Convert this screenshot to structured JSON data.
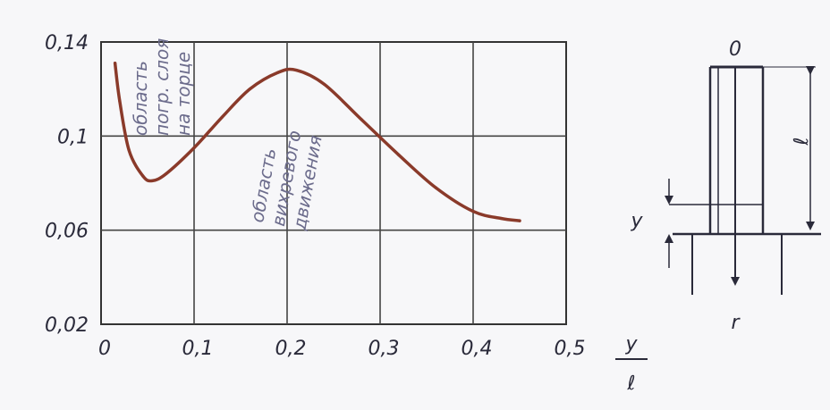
{
  "chart_data": {
    "type": "line",
    "title": "",
    "xlabel": {
      "numerator": "y",
      "denominator": "ℓ"
    },
    "ylabel": "",
    "x_ticks": [
      "0",
      "0,1",
      "0,2",
      "0,3",
      "0,4",
      "0,5"
    ],
    "y_ticks": [
      "0,02",
      "0,06",
      "0,1",
      "0,14"
    ],
    "xlim": [
      0,
      0.5
    ],
    "ylim": [
      0.02,
      0.14
    ],
    "grid": true,
    "series": [
      {
        "color": "#8a3a2a",
        "x": [
          0.015,
          0.02,
          0.03,
          0.045,
          0.055,
          0.07,
          0.1,
          0.13,
          0.16,
          0.19,
          0.21,
          0.24,
          0.28,
          0.32,
          0.36,
          0.4,
          0.43,
          0.45
        ],
        "y": [
          0.131,
          0.115,
          0.094,
          0.083,
          0.081,
          0.084,
          0.095,
          0.108,
          0.12,
          0.127,
          0.128,
          0.122,
          0.107,
          0.092,
          0.078,
          0.068,
          0.065,
          0.064
        ]
      }
    ],
    "annotations": [
      {
        "lines": [
          "область",
          "погр. слоя",
          "на торце"
        ]
      },
      {
        "lines": [
          "область",
          "вихревого",
          "движения"
        ]
      }
    ]
  },
  "diagram": {
    "top_label": "0",
    "length_label": "ℓ",
    "y_label": "y",
    "radial_label": "r"
  },
  "colors": {
    "curve": "#8a3a2a",
    "ink": "#2a2a3a",
    "pencil": "#6c6c8c"
  }
}
